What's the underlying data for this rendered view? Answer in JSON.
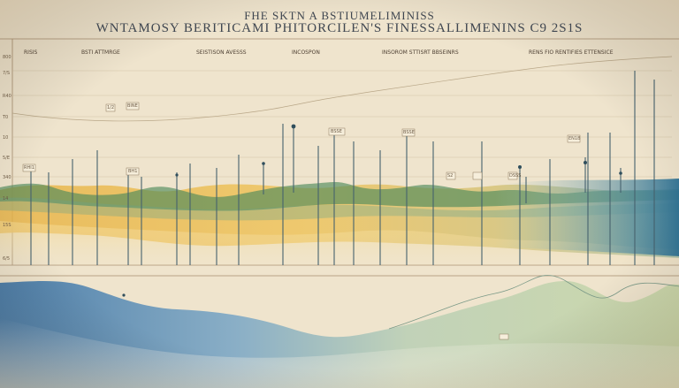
{
  "title": {
    "line1": "FHE SKTN A BSTIUMELIMINISS",
    "line2": "WNTAMOSY BERITICAMI PHITORCILEN'S FINESSALLIMENINS C9 2S1S"
  },
  "column_heads": [
    "RISIS",
    "BSTI ATTMRGE",
    "SEISTISON AVESSS",
    "INCOSPON",
    "INSOROM STTISRT BBSEINRS",
    "RENS FIO RENTIFIES ETTENSICE"
  ],
  "y_tick_labels": [
    "800",
    "7/S",
    "R40",
    "T0",
    "10",
    "5/E",
    "340",
    "14",
    "15S",
    "6/5"
  ],
  "markers": [
    "1/2",
    "BINE",
    "BSSE",
    "BSSE",
    "EN1B",
    "RHI1",
    "BH1",
    "S2",
    "DSSS"
  ],
  "colors": {
    "paper": "#efe4cd",
    "ochre": "#e9b343",
    "teal": "#4b9a92",
    "green": "#4f8a5a",
    "blue": "#3d72a4",
    "ink": "#3f4650"
  }
}
